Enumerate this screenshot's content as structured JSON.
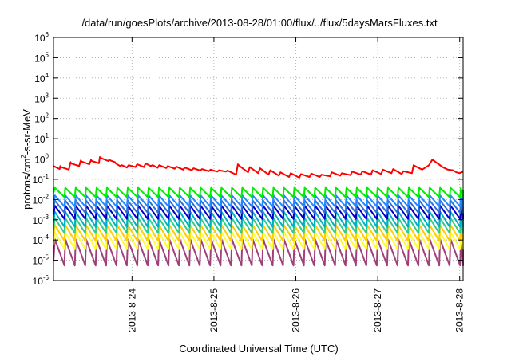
{
  "chart_data": {
    "type": "line",
    "title": "/data/run/goesPlots/archive/2013-08-28/01:00/flux/../flux/5daysMarsFluxes.txt",
    "xlabel": "Coordinated Universal Time (UTC)",
    "ylabel_base": "protons/cm",
    "ylabel_sup": "2",
    "ylabel_rest": "-s-sr-MeV",
    "yscale": "log",
    "ylim": [
      1e-06,
      1000000.0
    ],
    "y_ticks": [
      {
        "base": "10",
        "exp": "-6",
        "value": 1e-06
      },
      {
        "base": "10",
        "exp": "-5",
        "value": 1e-05
      },
      {
        "base": "10",
        "exp": "-4",
        "value": 0.0001
      },
      {
        "base": "10",
        "exp": "-3",
        "value": 0.001
      },
      {
        "base": "10",
        "exp": "-2",
        "value": 0.01
      },
      {
        "base": "10",
        "exp": "-1",
        "value": 0.1
      },
      {
        "base": "10",
        "exp": "0",
        "value": 1
      },
      {
        "base": "10",
        "exp": "1",
        "value": 10
      },
      {
        "base": "10",
        "exp": "2",
        "value": 100
      },
      {
        "base": "10",
        "exp": "3",
        "value": 1000
      },
      {
        "base": "10",
        "exp": "4",
        "value": 10000
      },
      {
        "base": "10",
        "exp": "5",
        "value": 100000
      },
      {
        "base": "10",
        "exp": "6",
        "value": 1000000
      }
    ],
    "xlim": [
      "2013-08-23T01:00",
      "2013-08-28T01:00"
    ],
    "x_ticks": [
      {
        "label": "2013-8-24",
        "value": "2013-08-24T00:00"
      },
      {
        "label": "2013-8-25",
        "value": "2013-08-25T00:00"
      },
      {
        "label": "2013-8-26",
        "value": "2013-08-26T00:00"
      },
      {
        "label": "2013-8-27",
        "value": "2013-08-27T00:00"
      },
      {
        "label": "2013-8-28",
        "value": "2013-08-28T00:00"
      }
    ],
    "grid": true,
    "legend": "none",
    "series": [
      {
        "color": "#ff0000",
        "points": [
          [
            0.0,
            0.45
          ],
          [
            1.8,
            0.32
          ],
          [
            2.0,
            0.45
          ],
          [
            2.2,
            0.4
          ],
          [
            4.5,
            0.3
          ],
          [
            5.0,
            0.7
          ],
          [
            5.2,
            0.6
          ],
          [
            7.5,
            0.45
          ],
          [
            8.0,
            0.85
          ],
          [
            8.2,
            0.75
          ],
          [
            10.5,
            0.55
          ],
          [
            11.0,
            0.9
          ],
          [
            11.2,
            0.8
          ],
          [
            13.3,
            0.62
          ],
          [
            13.6,
            1.25
          ],
          [
            14.0,
            1.1
          ],
          [
            16.0,
            0.8
          ],
          [
            16.3,
            0.9
          ],
          [
            18.0,
            0.7
          ],
          [
            18.3,
            0.6
          ],
          [
            19.5,
            0.45
          ],
          [
            20.0,
            0.5
          ],
          [
            21.5,
            0.38
          ],
          [
            22.0,
            0.5
          ],
          [
            24.0,
            0.4
          ],
          [
            24.5,
            0.55
          ],
          [
            26.5,
            0.4
          ],
          [
            27.0,
            0.6
          ],
          [
            28.5,
            0.45
          ],
          [
            29.0,
            0.5
          ],
          [
            30.5,
            0.37
          ],
          [
            31.0,
            0.5
          ],
          [
            33.0,
            0.36
          ],
          [
            33.5,
            0.45
          ],
          [
            35.5,
            0.33
          ],
          [
            36.0,
            0.42
          ],
          [
            38.0,
            0.3
          ],
          [
            38.5,
            0.38
          ],
          [
            40.5,
            0.28
          ],
          [
            41.0,
            0.35
          ],
          [
            43.0,
            0.27
          ],
          [
            43.5,
            0.32
          ],
          [
            45.5,
            0.25
          ],
          [
            46.0,
            0.3
          ],
          [
            48.0,
            0.24
          ],
          [
            48.5,
            0.28
          ],
          [
            50.5,
            0.24
          ],
          [
            51.0,
            0.27
          ],
          [
            53.5,
            0.17
          ],
          [
            54.0,
            0.55
          ],
          [
            54.5,
            0.45
          ],
          [
            57.0,
            0.22
          ],
          [
            57.5,
            0.4
          ],
          [
            60.0,
            0.2
          ],
          [
            60.5,
            0.35
          ],
          [
            63.0,
            0.17
          ],
          [
            63.5,
            0.28
          ],
          [
            66.0,
            0.15
          ],
          [
            66.5,
            0.22
          ],
          [
            69.0,
            0.13
          ],
          [
            69.5,
            0.2
          ],
          [
            72.0,
            0.12
          ],
          [
            72.5,
            0.18
          ],
          [
            75.0,
            0.13
          ],
          [
            75.5,
            0.19
          ],
          [
            78.0,
            0.13
          ],
          [
            78.5,
            0.17
          ],
          [
            81.0,
            0.14
          ],
          [
            81.5,
            0.22
          ],
          [
            84.0,
            0.15
          ],
          [
            84.5,
            0.2
          ],
          [
            87.0,
            0.16
          ],
          [
            87.5,
            0.24
          ],
          [
            90.0,
            0.17
          ],
          [
            90.5,
            0.25
          ],
          [
            93.0,
            0.17
          ],
          [
            93.5,
            0.28
          ],
          [
            96.0,
            0.18
          ],
          [
            96.5,
            0.3
          ],
          [
            99.0,
            0.2
          ],
          [
            99.5,
            0.32
          ],
          [
            102.0,
            0.18
          ],
          [
            102.5,
            0.25
          ],
          [
            105.0,
            0.2
          ],
          [
            105.5,
            0.5
          ],
          [
            106.5,
            0.4
          ],
          [
            108.0,
            0.3
          ],
          [
            110.0,
            0.5
          ],
          [
            111.0,
            0.95
          ],
          [
            112.0,
            0.7
          ],
          [
            114.0,
            0.4
          ],
          [
            115.5,
            0.3
          ],
          [
            117.0,
            0.28
          ],
          [
            118.0,
            0.22
          ],
          [
            119.0,
            0.2
          ],
          [
            120.0,
            0.24
          ]
        ]
      },
      {
        "color": "#00ee00",
        "spike": {
          "hi": 0.038,
          "lo": 0.013,
          "decay": 0.014
        }
      },
      {
        "color": "#2288ff",
        "spike": {
          "hi": 0.016,
          "lo": 0.0045,
          "decay": 0.006
        }
      },
      {
        "color": "#2f6fd6",
        "spike": {
          "hi": 0.009,
          "lo": 0.0022,
          "decay": 0.003
        }
      },
      {
        "color": "#0000cc",
        "spike": {
          "hi": 0.005,
          "lo": 0.0011,
          "decay": 0.0015
        }
      },
      {
        "color": "#00b0c0",
        "spike": {
          "hi": 0.0025,
          "lo": 0.00045,
          "decay": 0.0007
        }
      },
      {
        "color": "#33cc88",
        "spike": {
          "hi": 0.0012,
          "lo": 0.00022,
          "decay": 0.0003
        }
      },
      {
        "color": "#ffcc00",
        "spike": {
          "hi": 0.00055,
          "lo": 9e-05,
          "decay": 0.00014
        }
      },
      {
        "color": "#ffff33",
        "spike": {
          "hi": 0.00025,
          "lo": 3.5e-05,
          "decay": 6e-05
        }
      },
      {
        "color": "#a0407a",
        "spike": {
          "hi": 0.00011,
          "lo": 5.5e-06,
          "decay": 9e-06
        }
      }
    ],
    "spike_period_hours": 3.05,
    "spike_phase_hours": 0.4
  }
}
